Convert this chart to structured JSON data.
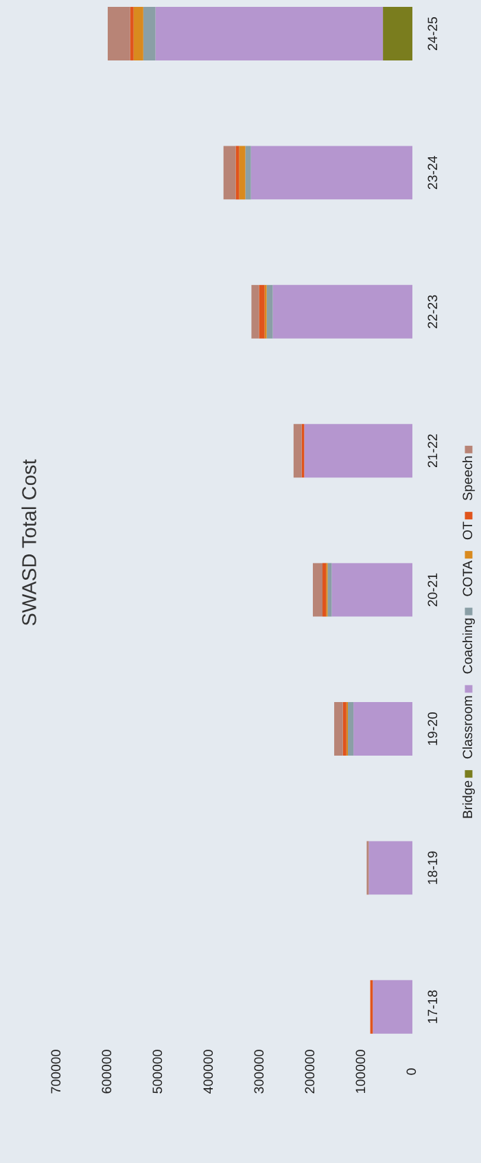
{
  "chart_data": {
    "type": "bar",
    "orientation": "horizontal",
    "stacked": true,
    "title": "SWASD Total Cost",
    "categories": [
      "24-25",
      "23-24",
      "22-23",
      "21-22",
      "20-21",
      "19-20",
      "18-19",
      "17-18"
    ],
    "series": [
      {
        "name": "Bridge",
        "color": "#7a7d1e",
        "values": [
          58000,
          0,
          0,
          0,
          0,
          0,
          0,
          0
        ]
      },
      {
        "name": "Classroom",
        "color": "#b596cf",
        "values": [
          448000,
          318000,
          275000,
          213000,
          159000,
          116000,
          86000,
          78000
        ]
      },
      {
        "name": "Coaching",
        "color": "#8a9fa6",
        "values": [
          24000,
          11000,
          12000,
          0,
          8000,
          11000,
          0,
          0
        ]
      },
      {
        "name": "COTA",
        "color": "#d98a1e",
        "values": [
          19000,
          12000,
          4000,
          0,
          3000,
          3000,
          0,
          0
        ]
      },
      {
        "name": "OT",
        "color": "#e0541c",
        "values": [
          7000,
          7000,
          11000,
          5000,
          7000,
          7000,
          0,
          5000
        ]
      },
      {
        "name": "Speech",
        "color": "#b88476",
        "values": [
          44000,
          24000,
          15000,
          16000,
          19000,
          17000,
          4000,
          0
        ]
      }
    ],
    "xlim": [
      700000,
      0
    ],
    "xticks": [
      0,
      100000,
      200000,
      300000,
      400000,
      500000,
      600000,
      700000
    ],
    "legend": "right"
  }
}
